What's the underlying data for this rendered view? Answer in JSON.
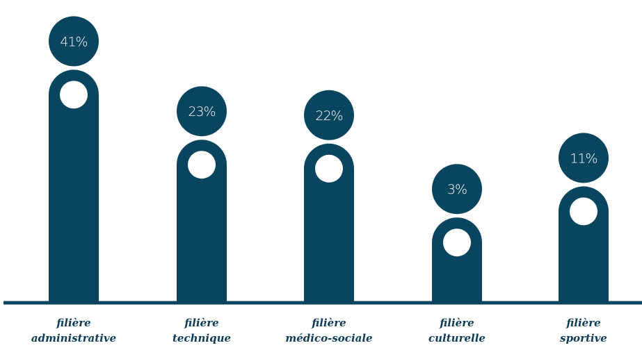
{
  "colors": {
    "bar": "#0a4560",
    "baseline": "#0a4560",
    "label": "#0d3c57",
    "dot": "#ffffff"
  },
  "chart_data": {
    "type": "bar",
    "title": "",
    "xlabel": "",
    "ylabel": "",
    "unit": "%",
    "categories": [
      [
        "filière",
        "administrative"
      ],
      [
        "filière",
        "technique"
      ],
      [
        "filière",
        "médico-sociale"
      ],
      [
        "filière",
        "culturelle"
      ],
      [
        "filière",
        "sportive"
      ]
    ],
    "values": [
      41,
      23,
      22,
      3,
      11
    ],
    "value_labels": [
      "41%",
      "23%",
      "22%",
      "3%",
      "11%"
    ],
    "legend": "none",
    "grid": false
  }
}
